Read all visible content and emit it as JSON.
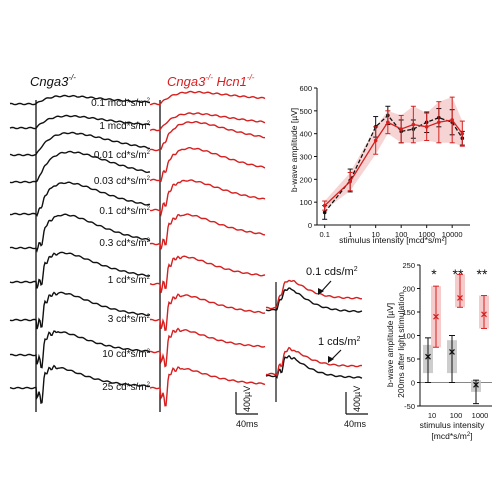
{
  "panel_left": {
    "title_black": "Cnga3",
    "title_black_sup": "-/-",
    "title_red": "Cnga3",
    "title_red_sup": "-/-",
    "title_red_gene2": " Hcn1",
    "title_red_sup2": "-/-",
    "intensity_labels": [
      "0.1 mcd*s/m",
      "1 mcd*s/m",
      "0.01 cd*s/m",
      "0.03 cd*s/m",
      "0.1 cd*s/m",
      "0.3 cd*s/m",
      "1 cd*s/m",
      "3 cd*s/m",
      "10 cd*s/m",
      "25 cd*s/m"
    ],
    "superscript_2": "2",
    "scale_voltage": "400µV",
    "scale_time": "40ms"
  },
  "panel_mid": {
    "labels": [
      "0.1 cds/m",
      "1 cds/m"
    ],
    "superscript_2": "2",
    "scale_voltage": "400µV",
    "scale_time": "40ms"
  },
  "colors": {
    "black": "#111111",
    "red": "#d62020",
    "red_fill": "#f4c2c2",
    "gray_fill": "#c4c4c4"
  },
  "chart_data": [
    {
      "type": "line",
      "xscale": "log",
      "ylabel": "b-wave amplitude [µV]",
      "xlabel": "stimulus intensity [mcd*s/m²]",
      "xlim": [
        0.05,
        50000
      ],
      "ylim": [
        0,
        600
      ],
      "xticks": [
        "0.1",
        "1",
        "10",
        "100",
        "1000",
        "10000"
      ],
      "yticks": [
        "0",
        "100",
        "200",
        "300",
        "400",
        "500",
        "600"
      ],
      "x": [
        0.1,
        1,
        10,
        30,
        100,
        300,
        1000,
        3000,
        10000,
        25000
      ],
      "series": [
        {
          "color": "black",
          "values": [
            55,
            195,
            430,
            480,
            410,
            420,
            450,
            470,
            450,
            380
          ],
          "err": [
            30,
            50,
            45,
            40,
            50,
            40,
            45,
            40,
            55,
            30
          ]
        },
        {
          "color": "red",
          "values": [
            85,
            190,
            370,
            450,
            420,
            440,
            430,
            450,
            460,
            400
          ],
          "err": [
            20,
            40,
            60,
            50,
            60,
            80,
            60,
            90,
            100,
            55
          ]
        }
      ]
    },
    {
      "type": "box",
      "ylabel": "b-wave amplitude [µV] 200ms after light stimulation",
      "xlabel": "stimulus intensity [mcd*s/m²]",
      "ylim": [
        -50,
        250
      ],
      "yticks": [
        "-50",
        "0",
        "50",
        "100",
        "150",
        "200",
        "250"
      ],
      "categories": [
        "10",
        "100",
        "1000"
      ],
      "significance": [
        "*",
        "**",
        "**"
      ],
      "series": [
        {
          "color": "black",
          "mean": [
            55,
            65,
            -5
          ],
          "median": [
            60,
            75,
            -5
          ],
          "q1": [
            20,
            20,
            -20
          ],
          "q3": [
            80,
            90,
            5
          ],
          "min": [
            0,
            0,
            -45
          ],
          "max": [
            95,
            100,
            5
          ]
        },
        {
          "color": "red",
          "mean": [
            140,
            180,
            145
          ],
          "median": [
            150,
            190,
            150
          ],
          "q1": [
            75,
            160,
            115
          ],
          "q3": [
            205,
            230,
            185
          ],
          "min": [
            75,
            160,
            115
          ],
          "max": [
            205,
            230,
            185
          ]
        }
      ]
    }
  ]
}
